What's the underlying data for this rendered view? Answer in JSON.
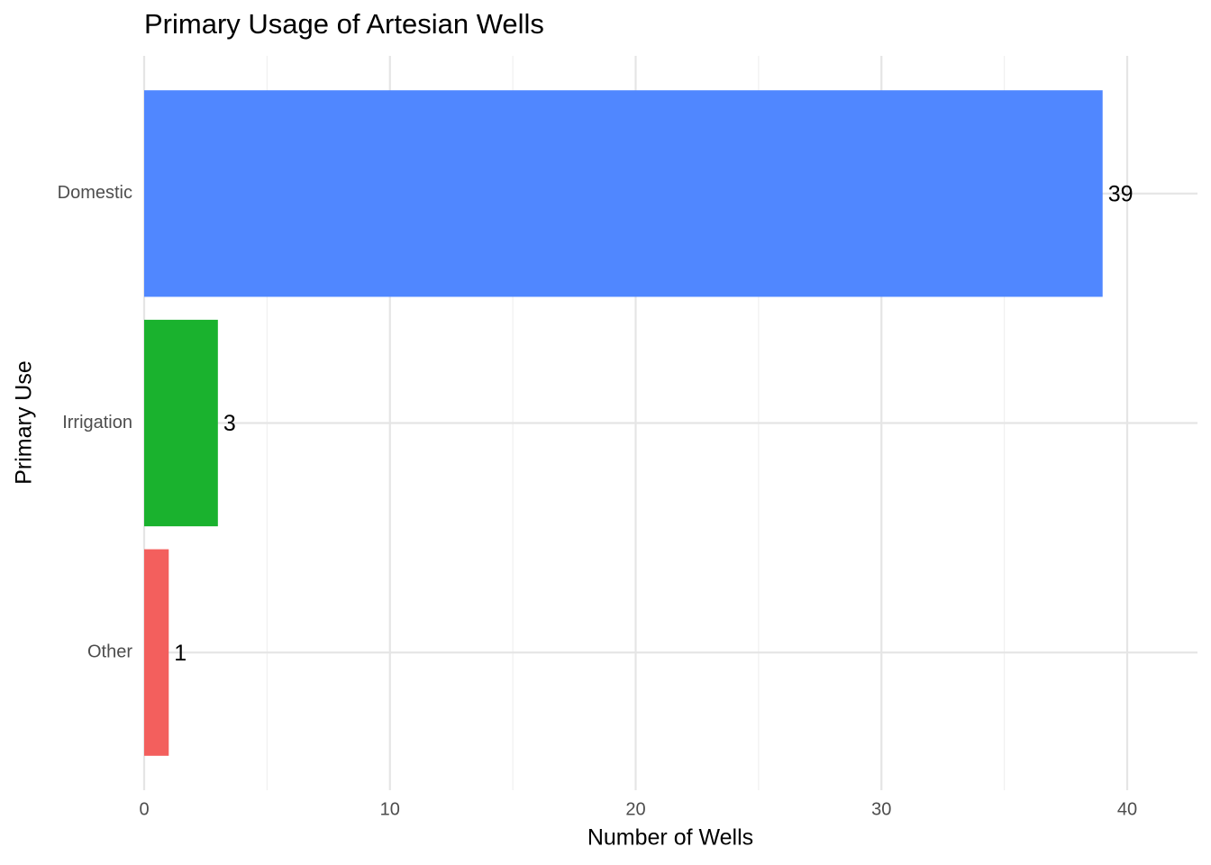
{
  "chart_data": {
    "type": "hbar",
    "title": "Primary Usage of Artesian Wells",
    "x_label": "Number of Wells",
    "y_label": "Primary Use",
    "categories": [
      "Domestic",
      "Irrigation",
      "Other"
    ],
    "values": [
      39,
      3,
      1
    ],
    "colors": [
      "#5087ff",
      "#1ab22e",
      "#f35f5d"
    ],
    "xlim": [
      0,
      42.86
    ],
    "xticks": [
      0,
      10,
      20,
      30,
      40
    ],
    "minor_xticks": [
      5,
      15,
      25,
      35
    ],
    "grid": true
  }
}
